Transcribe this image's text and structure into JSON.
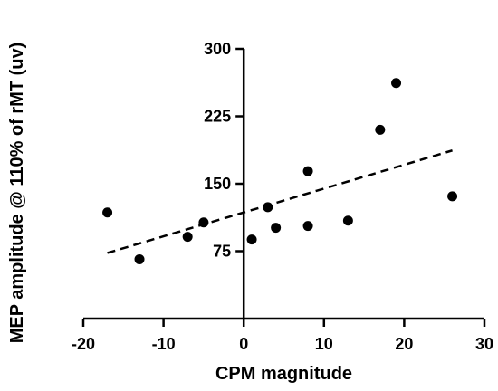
{
  "chart_data": {
    "type": "scatter",
    "xlabel": "CPM magnitude",
    "ylabel": "MEP amplitude @ 110% of rMT (uv)",
    "xlim": [
      -20,
      30
    ],
    "ylim": [
      0,
      300
    ],
    "xticks": [
      -20,
      -10,
      0,
      10,
      20,
      30
    ],
    "yticks": [
      75,
      150,
      225,
      300
    ],
    "xtick_labels": [
      "-20",
      "-10",
      "0",
      "10",
      "20",
      "30"
    ],
    "ytick_labels": [
      "75",
      "150",
      "225",
      "300"
    ],
    "grid": false,
    "points": [
      {
        "x": -17,
        "y": 118
      },
      {
        "x": -13,
        "y": 66
      },
      {
        "x": -7,
        "y": 91
      },
      {
        "x": -5,
        "y": 107
      },
      {
        "x": 1,
        "y": 88
      },
      {
        "x": 3,
        "y": 124
      },
      {
        "x": 4,
        "y": 101
      },
      {
        "x": 8,
        "y": 103
      },
      {
        "x": 8,
        "y": 164
      },
      {
        "x": 13,
        "y": 109
      },
      {
        "x": 17,
        "y": 210
      },
      {
        "x": 19,
        "y": 262
      },
      {
        "x": 26,
        "y": 136
      }
    ],
    "trendline": {
      "style": "dashed",
      "x": [
        -17,
        26
      ],
      "y": [
        73,
        187
      ]
    },
    "colors": {
      "points": "#000000",
      "line": "#000000",
      "axes": "#000000"
    }
  }
}
